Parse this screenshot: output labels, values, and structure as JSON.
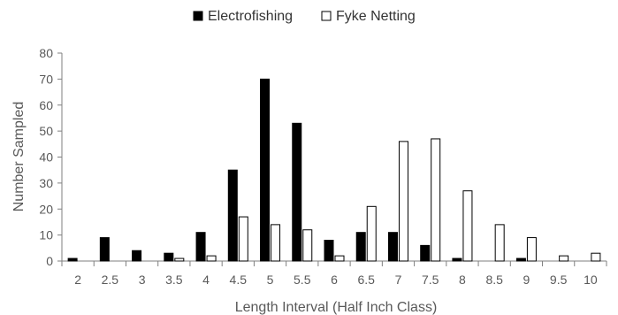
{
  "chart_data": {
    "type": "bar",
    "categories": [
      "2",
      "2.5",
      "3",
      "3.5",
      "4",
      "4.5",
      "5",
      "5.5",
      "6",
      "6.5",
      "7",
      "7.5",
      "8",
      "8.5",
      "9",
      "9.5",
      "10"
    ],
    "series": [
      {
        "name": "Electrofishing",
        "color": "#000000",
        "values": [
          1,
          9,
          4,
          3,
          11,
          35,
          70,
          53,
          8,
          11,
          11,
          6,
          1,
          0,
          1,
          0,
          0
        ]
      },
      {
        "name": "Fyke Netting",
        "color": "#ffffff",
        "values": [
          0,
          0,
          0,
          1,
          2,
          17,
          14,
          12,
          2,
          21,
          46,
          47,
          27,
          14,
          9,
          2,
          3
        ]
      }
    ],
    "xlabel": "Length Interval (Half Inch Class)",
    "ylabel": "Number Sampled",
    "ylim": [
      0,
      80
    ],
    "yticks": [
      0,
      10,
      20,
      30,
      40,
      50,
      60,
      70,
      80
    ],
    "legend_position": "top-center",
    "grid": false
  }
}
